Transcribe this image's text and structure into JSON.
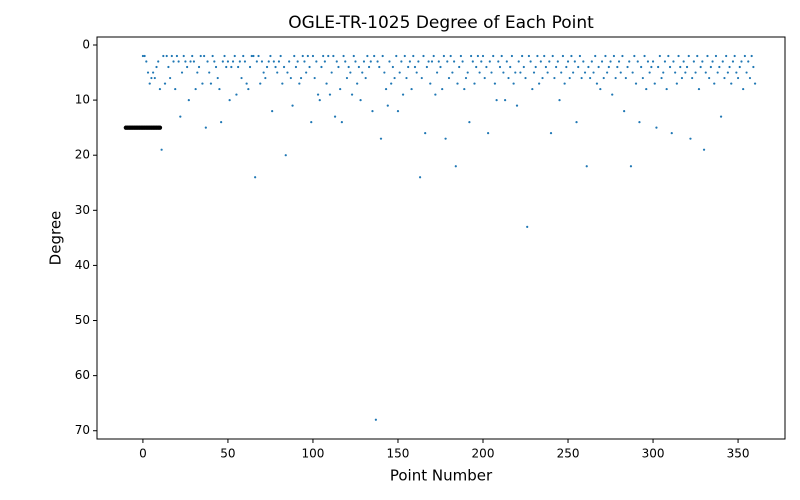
{
  "chart_data": {
    "type": "scatter",
    "title": "OGLE-TR-1025 Degree of Each Point",
    "x_label": "Point Number",
    "y_label": "Degree",
    "xlim": [
      -27,
      377.6
    ],
    "ylim": [
      -1.45,
      71.5
    ],
    "y_inverted": true,
    "xticks": [
      0,
      50,
      100,
      150,
      200,
      250,
      300,
      350
    ],
    "yticks": [
      0,
      10,
      20,
      30,
      40,
      50,
      60,
      70
    ],
    "series": [
      {
        "color": "#1f77b4",
        "size": 1.1,
        "x": [
          0,
          1,
          2,
          3,
          4,
          5,
          6,
          7,
          8,
          9,
          10,
          11,
          12,
          13,
          14,
          15,
          16,
          17,
          18,
          19,
          20,
          21,
          22,
          23,
          24,
          25,
          26,
          27,
          28,
          29,
          30,
          31,
          32,
          33,
          34,
          35,
          36,
          37,
          38,
          39,
          40,
          41,
          42,
          43,
          44,
          45,
          46,
          47,
          48,
          49,
          50,
          51,
          52,
          53,
          54,
          55,
          56,
          57,
          58,
          59,
          60,
          61,
          62,
          63,
          64,
          65,
          66,
          67,
          68,
          69,
          70,
          71,
          72,
          73,
          74,
          75,
          76,
          77,
          78,
          79,
          80,
          81,
          82,
          83,
          84,
          85,
          86,
          87,
          88,
          89,
          90,
          91,
          92,
          93,
          94,
          95,
          96,
          97,
          98,
          99,
          100,
          101,
          102,
          103,
          104,
          105,
          106,
          107,
          108,
          109,
          110,
          111,
          112,
          113,
          114,
          115,
          116,
          117,
          118,
          119,
          120,
          121,
          122,
          123,
          124,
          125,
          126,
          127,
          128,
          129,
          130,
          131,
          132,
          133,
          134,
          135,
          136,
          137,
          138,
          139,
          140,
          141,
          142,
          143,
          144,
          145,
          146,
          147,
          148,
          149,
          150,
          151,
          152,
          153,
          154,
          155,
          156,
          157,
          158,
          159,
          160,
          161,
          162,
          163,
          164,
          165,
          166,
          167,
          168,
          169,
          170,
          171,
          172,
          173,
          174,
          175,
          176,
          177,
          178,
          179,
          180,
          181,
          182,
          183,
          184,
          185,
          186,
          187,
          188,
          189,
          190,
          191,
          192,
          193,
          194,
          195,
          196,
          197,
          198,
          199,
          200,
          201,
          202,
          203,
          204,
          205,
          206,
          207,
          208,
          209,
          210,
          211,
          212,
          213,
          214,
          215,
          216,
          217,
          218,
          219,
          220,
          221,
          222,
          223,
          224,
          225,
          226,
          227,
          228,
          229,
          230,
          231,
          232,
          233,
          234,
          235,
          236,
          237,
          238,
          239,
          240,
          241,
          242,
          243,
          244,
          245,
          246,
          247,
          248,
          249,
          250,
          251,
          252,
          253,
          254,
          255,
          256,
          257,
          258,
          259,
          260,
          261,
          262,
          263,
          264,
          265,
          266,
          267,
          268,
          269,
          270,
          271,
          272,
          273,
          274,
          275,
          276,
          277,
          278,
          279,
          280,
          281,
          282,
          283,
          284,
          285,
          286,
          287,
          288,
          289,
          290,
          291,
          292,
          293,
          294,
          295,
          296,
          297,
          298,
          299,
          300,
          301,
          302,
          303,
          304,
          305,
          306,
          307,
          308,
          309,
          310,
          311,
          312,
          313,
          314,
          315,
          316,
          317,
          318,
          319,
          320,
          321,
          322,
          323,
          324,
          325,
          326,
          327,
          328,
          329,
          330,
          331,
          332,
          333,
          334,
          335,
          336,
          337,
          338,
          339,
          340,
          341,
          342,
          343,
          344,
          345,
          346,
          347,
          348,
          349,
          350,
          351,
          352,
          353,
          354,
          355,
          356,
          357,
          358,
          359,
          360
        ],
        "values": [
          2,
          2,
          3,
          5,
          7,
          6,
          5,
          6,
          4,
          3,
          8,
          19,
          2,
          7,
          2,
          4,
          6,
          2,
          3,
          8,
          2,
          3,
          13,
          5,
          2,
          3,
          4,
          10,
          3,
          2,
          3,
          8,
          5,
          4,
          2,
          7,
          2,
          15,
          3,
          5,
          7,
          2,
          3,
          4,
          6,
          8,
          14,
          3,
          2,
          4,
          3,
          10,
          4,
          3,
          2,
          9,
          4,
          3,
          6,
          2,
          3,
          7,
          8,
          4,
          2,
          2,
          24,
          3,
          2,
          7,
          3,
          5,
          6,
          4,
          3,
          2,
          12,
          3,
          4,
          5,
          3,
          2,
          7,
          4,
          20,
          5,
          3,
          6,
          11,
          2,
          4,
          3,
          7,
          6,
          2,
          3,
          5,
          2,
          4,
          14,
          2,
          6,
          3,
          9,
          10,
          4,
          2,
          3,
          7,
          2,
          9,
          5,
          2,
          13,
          3,
          4,
          8,
          14,
          2,
          3,
          6,
          4,
          5,
          9,
          2,
          3,
          7,
          4,
          10,
          5,
          3,
          6,
          2,
          4,
          3,
          12,
          2,
          68,
          3,
          4,
          17,
          2,
          5,
          8,
          11,
          3,
          7,
          4,
          6,
          2,
          12,
          5,
          3,
          9,
          2,
          6,
          4,
          3,
          8,
          2,
          4,
          5,
          3,
          24,
          6,
          2,
          16,
          4,
          3,
          7,
          3,
          2,
          9,
          5,
          3,
          4,
          8,
          2,
          17,
          3,
          6,
          2,
          5,
          3,
          22,
          7,
          4,
          2,
          3,
          8,
          6,
          5,
          14,
          2,
          3,
          7,
          4,
          2,
          5,
          3,
          2,
          6,
          4,
          16,
          3,
          5,
          2,
          7,
          10,
          3,
          4,
          2,
          5,
          10,
          3,
          6,
          4,
          2,
          7,
          5,
          11,
          3,
          5,
          2,
          4,
          6,
          33,
          2,
          3,
          8,
          5,
          4,
          2,
          7,
          3,
          6,
          2,
          4,
          5,
          3,
          16,
          2,
          6,
          4,
          3,
          10,
          5,
          2,
          7,
          4,
          3,
          6,
          2,
          5,
          3,
          14,
          4,
          2,
          6,
          3,
          5,
          22,
          4,
          6,
          3,
          5,
          2,
          7,
          4,
          8,
          3,
          6,
          2,
          5,
          4,
          3,
          9,
          2,
          6,
          4,
          3,
          5,
          2,
          12,
          6,
          4,
          3,
          22,
          5,
          2,
          7,
          3,
          14,
          4,
          6,
          2,
          8,
          3,
          5,
          4,
          3,
          7,
          15,
          4,
          2,
          6,
          5,
          3,
          8,
          2,
          4,
          16,
          3,
          5,
          7,
          2,
          4,
          6,
          3,
          5,
          4,
          2,
          17,
          6,
          3,
          5,
          2,
          8,
          4,
          3,
          19,
          5,
          2,
          6,
          4,
          3,
          7,
          2,
          5,
          4,
          13,
          3,
          6,
          2,
          5,
          4,
          7,
          3,
          2,
          5,
          6,
          4,
          3,
          8,
          2,
          5,
          3,
          6,
          2,
          4,
          7
        ]
      },
      {
        "color": "#000000",
        "size": 2.2,
        "x": [
          -10,
          -9,
          -8,
          -7,
          -6,
          -5,
          -4,
          -3,
          -2,
          -1,
          0,
          1,
          2,
          3,
          4,
          5,
          6,
          7,
          8,
          9,
          10
        ],
        "values": [
          15,
          15,
          15,
          15,
          15,
          15,
          15,
          15,
          15,
          15,
          15,
          15,
          15,
          15,
          15,
          15,
          15,
          15,
          15,
          15,
          15
        ]
      }
    ]
  }
}
